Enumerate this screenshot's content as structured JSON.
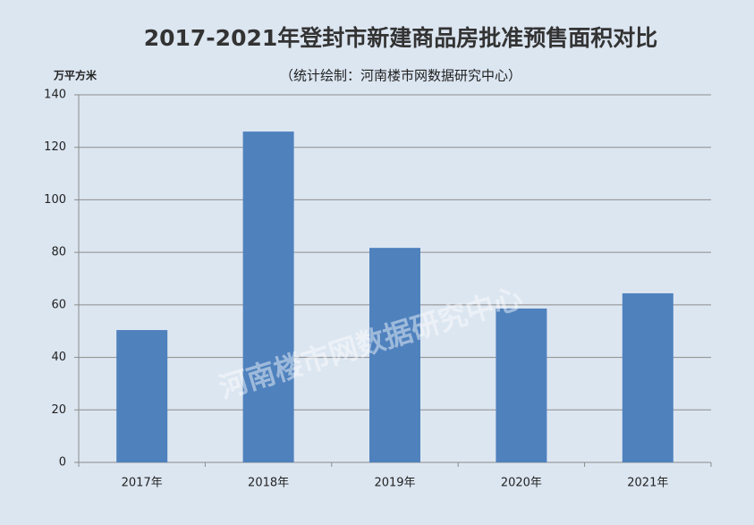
{
  "chart_data": {
    "type": "bar",
    "title": "2017-2021年登封市新建商品房批准预售面积对比",
    "subtitle": "（统计绘制：河南楼市网数据研究中心）",
    "y_label": "万平方米",
    "watermark": "河南楼市网数据研究中心",
    "categories": [
      "2017年",
      "2018年",
      "2019年",
      "2020年",
      "2021年"
    ],
    "values": [
      50.4,
      126,
      81.7,
      58.6,
      64.4
    ],
    "color": "#4f81bd",
    "ylim": [
      0,
      140
    ],
    "yticks": [
      0,
      20,
      40,
      60,
      80,
      100,
      120,
      140
    ],
    "grid": true
  }
}
